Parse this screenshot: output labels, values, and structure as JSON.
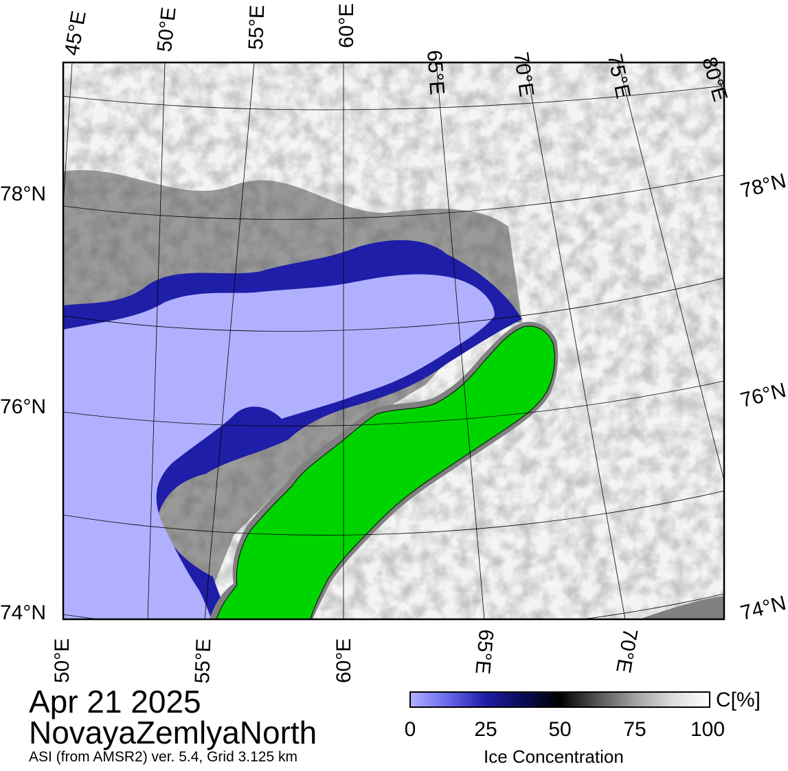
{
  "map": {
    "top_lon_labels": [
      "45°E",
      "50°E",
      "55°E",
      "60°E",
      "65°E",
      "70°E",
      "75°E",
      "80°E"
    ],
    "bottom_lon_labels": [
      "50°E",
      "55°E",
      "60°E",
      "65°E",
      "70°E"
    ],
    "left_lat_labels": [
      "78°N",
      "76°N",
      "74°N"
    ],
    "right_lat_labels": [
      "78°N",
      "76°N",
      "74°N"
    ],
    "colors": {
      "open_water": "#b0b0ff",
      "ice_edge": "#1e1ea8",
      "land": "#00d400",
      "coast_mask": "#808080",
      "ice_full": "#ffffff",
      "frame": "#000000"
    }
  },
  "title": {
    "date": "Apr 21 2025",
    "region": "NovayaZemlyaNorth",
    "source": "ASI (from AMSR2) ver. 5.4,  Grid 3.125 km"
  },
  "colorbar": {
    "unit": "C[%]",
    "title": "Ice Concentration",
    "ticks": [
      "0",
      "25",
      "50",
      "75",
      "100"
    ]
  }
}
